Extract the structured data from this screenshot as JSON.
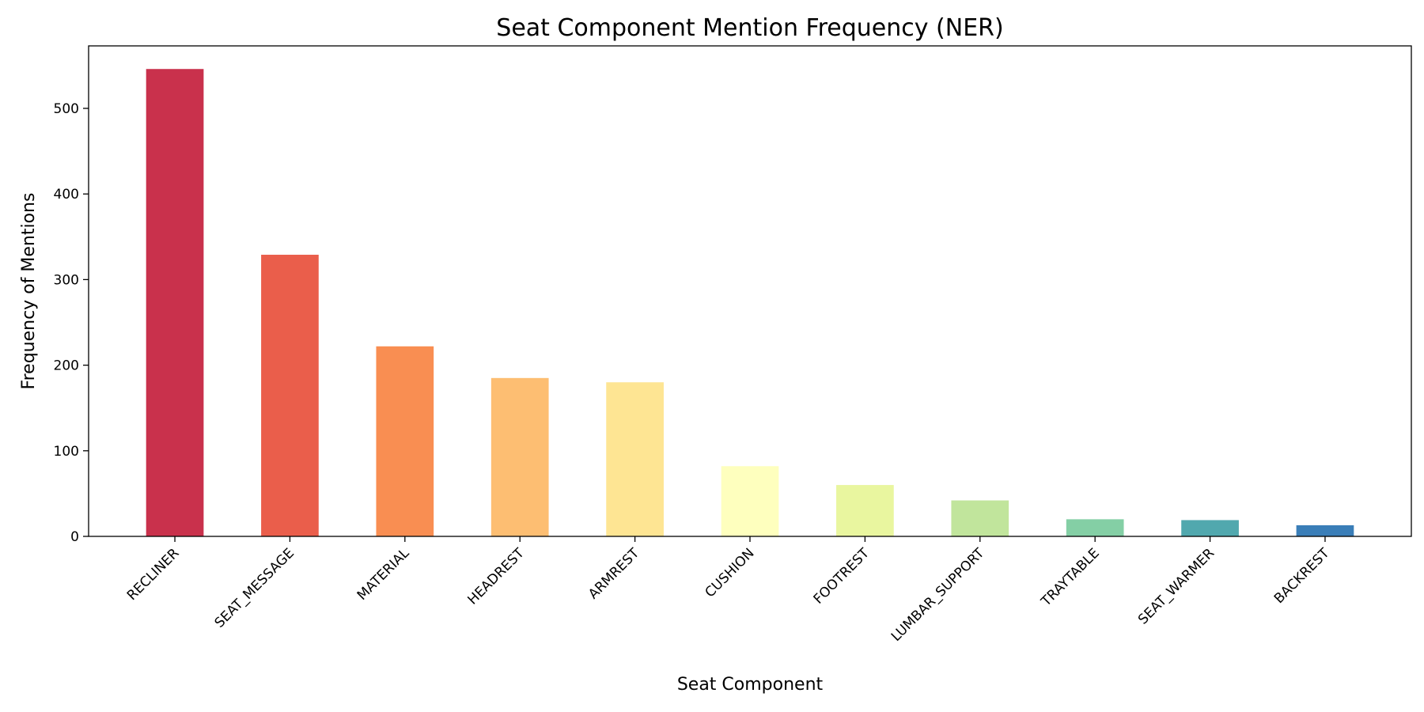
{
  "chart_data": {
    "type": "bar",
    "title": "Seat Component Mention Frequency (NER)",
    "xlabel": "Seat Component",
    "ylabel": "Frequency of Mentions",
    "categories": [
      "RECLINER",
      "SEAT_MESSAGE",
      "MATERIAL",
      "HEADREST",
      "ARMREST",
      "CUSHION",
      "FOOTREST",
      "LUMBAR_SUPPORT",
      "TRAYTABLE",
      "SEAT_WARMER",
      "BACKREST"
    ],
    "values": [
      546,
      329,
      222,
      185,
      180,
      82,
      60,
      42,
      20,
      19,
      13
    ],
    "colors": [
      "#c9314c",
      "#ea5e4b",
      "#f98e52",
      "#fdbe72",
      "#fee593",
      "#feffbe",
      "#e9f69f",
      "#c1e59c",
      "#84cfa5",
      "#51a8ae",
      "#3a7eb8"
    ],
    "ylim": [
      0,
      573
    ],
    "yticks": [
      0,
      100,
      200,
      300,
      400,
      500
    ],
    "grid": false,
    "legend": "none"
  }
}
